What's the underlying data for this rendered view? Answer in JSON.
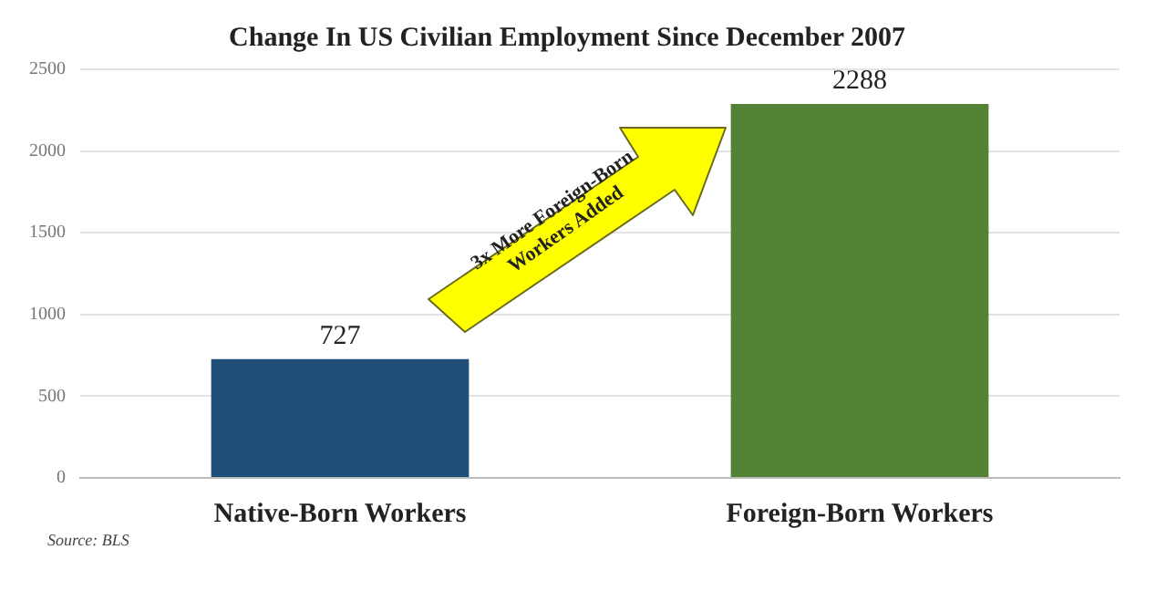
{
  "chart_data": {
    "type": "bar",
    "title": "Change In US Civilian Employment Since December 2007",
    "categories": [
      "Native-Born Workers",
      "Foreign-Born Workers"
    ],
    "values": [
      727,
      2288
    ],
    "colors": [
      "#1f4e79",
      "#548235"
    ],
    "data_labels": true,
    "ylim": [
      0,
      2500
    ],
    "yticks": [
      0,
      500,
      1000,
      1500,
      2000,
      2500
    ],
    "grid": "y",
    "legend": false,
    "annotations": [
      "3x More Foreign-Born Workers Added",
      "Source: BLS"
    ]
  }
}
